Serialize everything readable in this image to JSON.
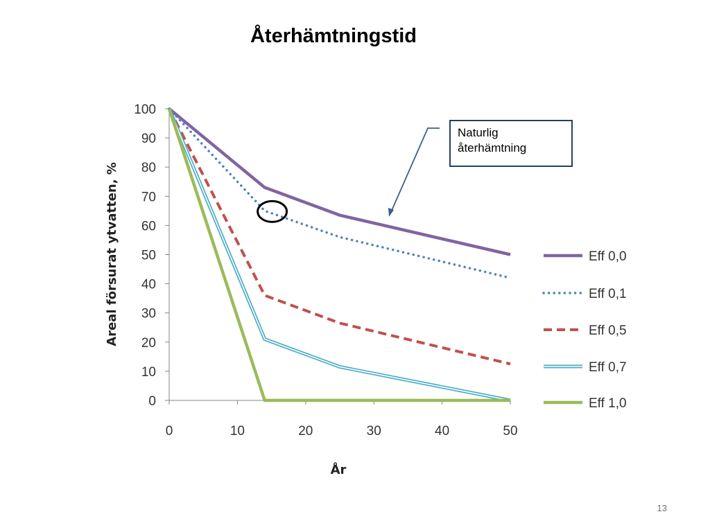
{
  "title": "Återhämtningstid",
  "callout": {
    "line1": "Naturlig",
    "line2": "återhämtning"
  },
  "page_number": "13",
  "chart_data": {
    "type": "line",
    "xlabel": "År",
    "ylabel": "Areal försurat ytvatten, %",
    "xlim": [
      0,
      50
    ],
    "ylim": [
      0,
      100
    ],
    "x_ticks": [
      "0",
      "10",
      "20",
      "30",
      "40",
      "50"
    ],
    "y_ticks": [
      "0",
      "10",
      "20",
      "30",
      "40",
      "50",
      "60",
      "70",
      "80",
      "90",
      "100"
    ],
    "grid": false,
    "legend_position": "right",
    "x": [
      0,
      14,
      25,
      50
    ],
    "series": [
      {
        "name": "Eff 0,0",
        "values": [
          100,
          73,
          63.5,
          50
        ],
        "color": "#8064a2",
        "style": "solid"
      },
      {
        "name": "Eff 0,1",
        "values": [
          100,
          65,
          56,
          42
        ],
        "color": "#4f81bd",
        "style": "dotted"
      },
      {
        "name": "Eff 0,5",
        "values": [
          100,
          36,
          26.5,
          12.5
        ],
        "color": "#c0504d",
        "style": "dashed"
      },
      {
        "name": "Eff 0,7",
        "values": [
          100,
          21,
          11.5,
          0
        ],
        "color": "#4bacc6",
        "style": "double"
      },
      {
        "name": "Eff 1,0",
        "values": [
          100,
          0,
          0,
          0
        ],
        "color": "#9bbb59",
        "style": "solid"
      }
    ],
    "annotation": {
      "marker": "circle",
      "x": 15,
      "y": 65,
      "callout_target_series": "Eff 0,0"
    }
  }
}
